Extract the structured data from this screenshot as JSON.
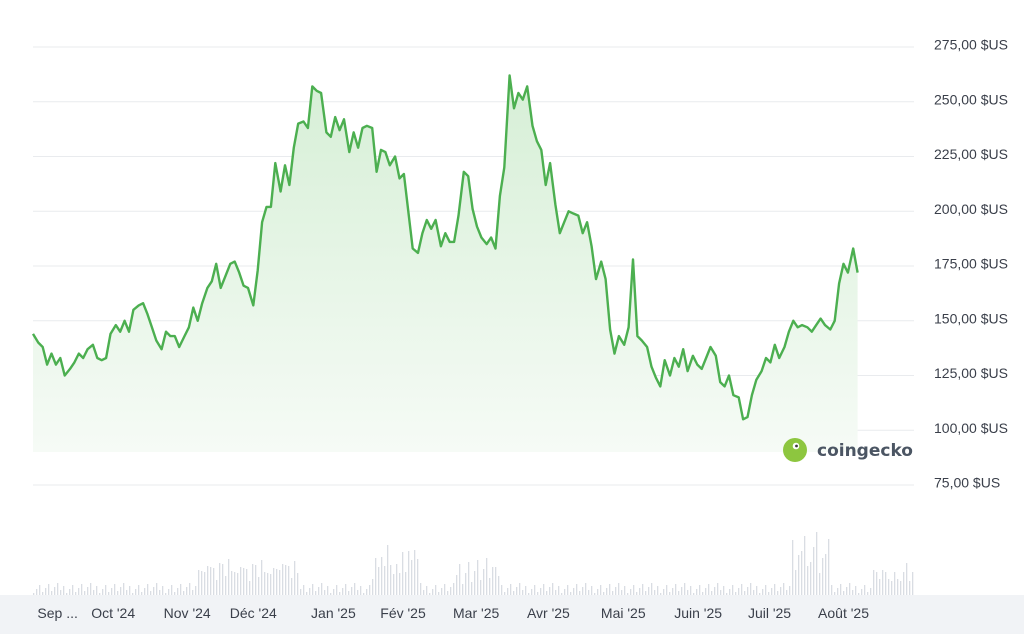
{
  "brand": {
    "name": "coingecko",
    "accent": "#8dc63f"
  },
  "colors": {
    "line": "#4caf50",
    "area_top": "#d6efd6",
    "area_bottom": "#f6fbf6",
    "grid": "#e9ebee",
    "volume": "#d9dde3"
  },
  "chart_data": {
    "type": "area",
    "ylim": [
      75,
      275
    ],
    "y_ticks": [
      {
        "value": 275,
        "label": "275,00 $US"
      },
      {
        "value": 250,
        "label": "250,00 $US"
      },
      {
        "value": 225,
        "label": "225,00 $US"
      },
      {
        "value": 200,
        "label": "200,00 $US"
      },
      {
        "value": 175,
        "label": "175,00 $US"
      },
      {
        "value": 150,
        "label": "150,00 $US"
      },
      {
        "value": 125,
        "label": "125,00 $US"
      },
      {
        "value": 100,
        "label": "100,00 $US"
      },
      {
        "value": 75,
        "label": "75,00 $US"
      }
    ],
    "x_labels": [
      "Sep ...",
      "Oct '24",
      "Nov '24",
      "Déc '24",
      "Jan '25",
      "Fév '25",
      "Mar '25",
      "Avr '25",
      "Mai '25",
      "Juin '25",
      "Juil '25",
      "Août '25"
    ],
    "x_range": [
      0,
      100
    ],
    "label_positions": [
      2.8,
      9.1,
      17.5,
      25.0,
      34.1,
      42.0,
      50.3,
      58.5,
      67.0,
      75.5,
      83.6,
      92.0
    ],
    "points": [
      [
        0,
        144
      ],
      [
        0.6,
        140
      ],
      [
        1.1,
        138
      ],
      [
        1.6,
        130
      ],
      [
        2.1,
        135
      ],
      [
        2.6,
        130
      ],
      [
        3.1,
        133
      ],
      [
        3.6,
        125
      ],
      [
        4.2,
        128
      ],
      [
        4.7,
        131
      ],
      [
        5.2,
        135
      ],
      [
        5.7,
        133
      ],
      [
        6.2,
        137
      ],
      [
        6.8,
        139
      ],
      [
        7.3,
        133
      ],
      [
        7.8,
        132
      ],
      [
        8.3,
        133
      ],
      [
        8.8,
        144
      ],
      [
        9.4,
        148
      ],
      [
        9.9,
        145
      ],
      [
        10.4,
        150
      ],
      [
        10.9,
        145
      ],
      [
        11.4,
        155
      ],
      [
        12.0,
        157
      ],
      [
        12.5,
        158
      ],
      [
        13.0,
        153
      ],
      [
        13.5,
        147
      ],
      [
        14.0,
        141
      ],
      [
        14.6,
        137
      ],
      [
        15.1,
        145
      ],
      [
        15.6,
        143
      ],
      [
        16.1,
        143
      ],
      [
        16.6,
        138
      ],
      [
        17.2,
        143
      ],
      [
        17.7,
        147
      ],
      [
        18.2,
        156
      ],
      [
        18.7,
        150
      ],
      [
        19.2,
        158
      ],
      [
        19.8,
        165
      ],
      [
        20.3,
        168
      ],
      [
        20.8,
        176
      ],
      [
        21.3,
        165
      ],
      [
        21.8,
        170
      ],
      [
        22.4,
        176
      ],
      [
        22.9,
        177
      ],
      [
        23.4,
        172
      ],
      [
        23.9,
        166
      ],
      [
        24.4,
        165
      ],
      [
        25.0,
        157
      ],
      [
        25.5,
        173
      ],
      [
        26.0,
        195
      ],
      [
        26.5,
        202
      ],
      [
        27.0,
        202
      ],
      [
        27.5,
        222
      ],
      [
        28.1,
        209
      ],
      [
        28.6,
        221
      ],
      [
        29.1,
        212
      ],
      [
        29.6,
        229
      ],
      [
        30.1,
        240
      ],
      [
        30.7,
        241
      ],
      [
        31.2,
        238
      ],
      [
        31.7,
        257
      ],
      [
        32.2,
        255
      ],
      [
        32.7,
        254
      ],
      [
        33.3,
        236
      ],
      [
        33.8,
        234
      ],
      [
        34.3,
        243
      ],
      [
        34.8,
        237
      ],
      [
        35.3,
        242
      ],
      [
        35.9,
        227
      ],
      [
        36.4,
        236
      ],
      [
        36.9,
        229
      ],
      [
        37.4,
        238
      ],
      [
        37.9,
        239
      ],
      [
        38.5,
        238
      ],
      [
        39.0,
        218
      ],
      [
        39.5,
        228
      ],
      [
        40.0,
        227
      ],
      [
        40.5,
        221
      ],
      [
        41.1,
        225
      ],
      [
        41.6,
        215
      ],
      [
        42.1,
        217
      ],
      [
        42.6,
        200
      ],
      [
        43.1,
        183
      ],
      [
        43.7,
        181
      ],
      [
        44.2,
        190
      ],
      [
        44.7,
        196
      ],
      [
        45.2,
        192
      ],
      [
        45.7,
        196
      ],
      [
        46.3,
        184
      ],
      [
        46.8,
        190
      ],
      [
        47.3,
        186
      ],
      [
        47.8,
        186
      ],
      [
        48.3,
        198
      ],
      [
        48.9,
        218
      ],
      [
        49.4,
        216
      ],
      [
        49.9,
        201
      ],
      [
        50.4,
        193
      ],
      [
        50.9,
        188
      ],
      [
        51.5,
        185
      ],
      [
        52.0,
        188
      ],
      [
        52.5,
        183
      ],
      [
        53.0,
        207
      ],
      [
        53.5,
        220
      ],
      [
        54.1,
        262
      ],
      [
        54.6,
        247
      ],
      [
        55.1,
        254
      ],
      [
        55.6,
        251
      ],
      [
        56.1,
        257
      ],
      [
        56.7,
        239
      ],
      [
        57.2,
        232
      ],
      [
        57.7,
        228
      ],
      [
        58.2,
        212
      ],
      [
        58.7,
        222
      ],
      [
        59.3,
        203
      ],
      [
        59.8,
        190
      ],
      [
        60.3,
        195
      ],
      [
        60.8,
        200
      ],
      [
        61.3,
        199
      ],
      [
        61.9,
        198
      ],
      [
        62.4,
        190
      ],
      [
        62.9,
        195
      ],
      [
        63.4,
        184
      ],
      [
        63.9,
        169
      ],
      [
        64.5,
        177
      ],
      [
        65.0,
        169
      ],
      [
        65.5,
        146
      ],
      [
        66.0,
        135
      ],
      [
        66.5,
        143
      ],
      [
        67.1,
        139
      ],
      [
        67.6,
        147
      ],
      [
        68.1,
        178
      ],
      [
        68.6,
        143
      ],
      [
        69.1,
        141
      ],
      [
        69.7,
        138
      ],
      [
        70.2,
        129
      ],
      [
        70.7,
        124
      ],
      [
        71.2,
        120
      ],
      [
        71.7,
        132
      ],
      [
        72.3,
        125
      ],
      [
        72.8,
        133
      ],
      [
        73.3,
        129
      ],
      [
        73.8,
        137
      ],
      [
        74.3,
        127
      ],
      [
        74.9,
        134
      ],
      [
        75.4,
        130
      ],
      [
        75.9,
        128
      ],
      [
        76.4,
        133
      ],
      [
        76.9,
        138
      ],
      [
        77.5,
        134
      ],
      [
        78.0,
        122
      ],
      [
        78.5,
        120
      ],
      [
        79.0,
        125
      ],
      [
        79.5,
        116
      ],
      [
        80.1,
        115
      ],
      [
        80.6,
        105
      ],
      [
        81.1,
        106
      ],
      [
        81.6,
        116
      ],
      [
        82.1,
        123
      ],
      [
        82.7,
        127
      ],
      [
        83.2,
        133
      ],
      [
        83.7,
        131
      ],
      [
        84.2,
        139
      ],
      [
        84.7,
        133
      ],
      [
        85.3,
        138
      ],
      [
        85.8,
        145
      ],
      [
        86.3,
        150
      ],
      [
        86.8,
        147
      ],
      [
        87.3,
        148
      ],
      [
        87.9,
        147
      ],
      [
        88.4,
        145
      ],
      [
        88.9,
        148
      ],
      [
        89.4,
        151
      ],
      [
        89.9,
        148
      ],
      [
        90.5,
        146
      ],
      [
        91.0,
        150
      ],
      [
        91.5,
        167
      ],
      [
        92.0,
        176
      ],
      [
        92.5,
        172
      ],
      [
        93.1,
        183
      ],
      [
        93.6,
        172
      ]
    ],
    "series": [
      {
        "values": []
      }
    ]
  },
  "labels": {
    "logo_text": "coingecko"
  }
}
